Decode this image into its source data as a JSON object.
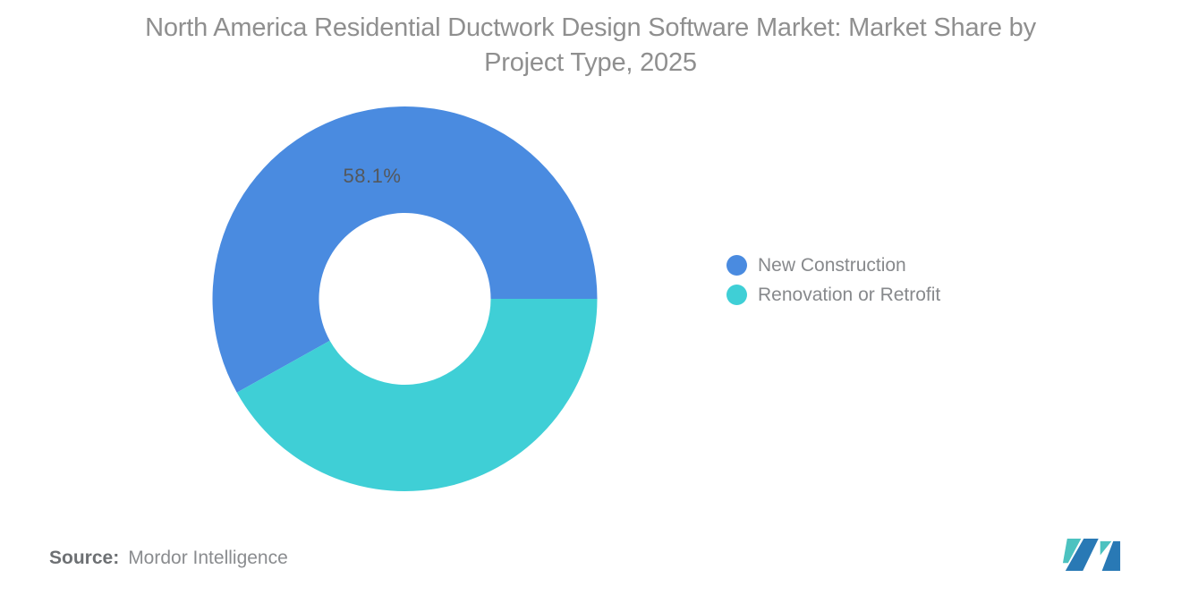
{
  "title": {
    "line1": "North America Residential Ductwork Design Software Market: Market Share by",
    "line2": "Project Type, 2025"
  },
  "source": {
    "label": "Source:",
    "value": "Mordor Intelligence"
  },
  "branding": {
    "logo_name": "mordor-intelligence-logo",
    "logo_blue": "#2979b5",
    "logo_teal": "#4cc2c0"
  },
  "chart_data": {
    "type": "pie",
    "subtype": "donut",
    "title": "North America Residential Ductwork Design Software Market: Market Share by Project Type, 2025",
    "categories": [
      "New Construction",
      "Renovation or Retrofit"
    ],
    "values": [
      58.1,
      41.9
    ],
    "unit": "%",
    "colors": [
      "#4A8BE0",
      "#3FCFD6"
    ],
    "data_labels": [
      "58.1%",
      ""
    ],
    "legend_position": "right",
    "start_angle_deg": 0,
    "direction": "counterclockwise",
    "label_color": "#54585d",
    "grid": false
  }
}
